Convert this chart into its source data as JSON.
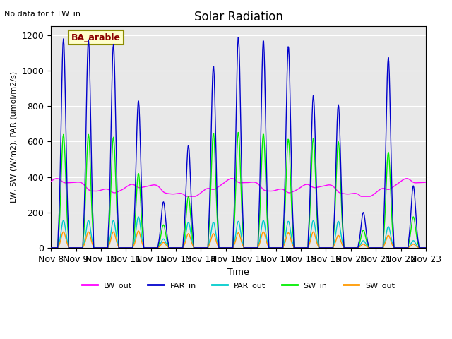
{
  "title": "Solar Radiation",
  "top_left_note": "No data for f_LW_in",
  "ylabel": "LW, SW (W/m2), PAR (umol/m2/s)",
  "xlabel": "Time",
  "legend_label": "BA_arable",
  "ylim": [
    0,
    1250
  ],
  "background_color": "#e8e8e8",
  "colors": {
    "LW_out": "#ff00ff",
    "PAR_in": "#0000cc",
    "PAR_out": "#00cccc",
    "SW_in": "#00ee00",
    "SW_out": "#ff9900"
  },
  "xtick_labels": [
    "Nov 8",
    "Nov 9",
    "Nov 10",
    "Nov 11",
    "Nov 12",
    "Nov 13",
    "Nov 14",
    "Nov 15",
    "Nov 16",
    "Nov 17",
    "Nov 18",
    "Nov 19",
    "Nov 20",
    "Nov 21",
    "Nov 22",
    "Nov 23"
  ],
  "n_days": 15,
  "day_start": 8,
  "par_in_peaks": [
    1180,
    1175,
    1150,
    830,
    260,
    580,
    1030,
    1195,
    1175,
    1140,
    860,
    810,
    200,
    1075,
    350
  ],
  "sw_in_peaks": [
    640,
    640,
    625,
    420,
    130,
    290,
    650,
    655,
    645,
    615,
    620,
    600,
    100,
    540,
    175
  ],
  "par_out_peaks": [
    155,
    155,
    155,
    175,
    50,
    145,
    145,
    150,
    155,
    150,
    155,
    150,
    40,
    120,
    40
  ],
  "sw_out_peaks": [
    90,
    90,
    90,
    95,
    30,
    80,
    80,
    85,
    90,
    85,
    90,
    70,
    20,
    70,
    20
  ]
}
